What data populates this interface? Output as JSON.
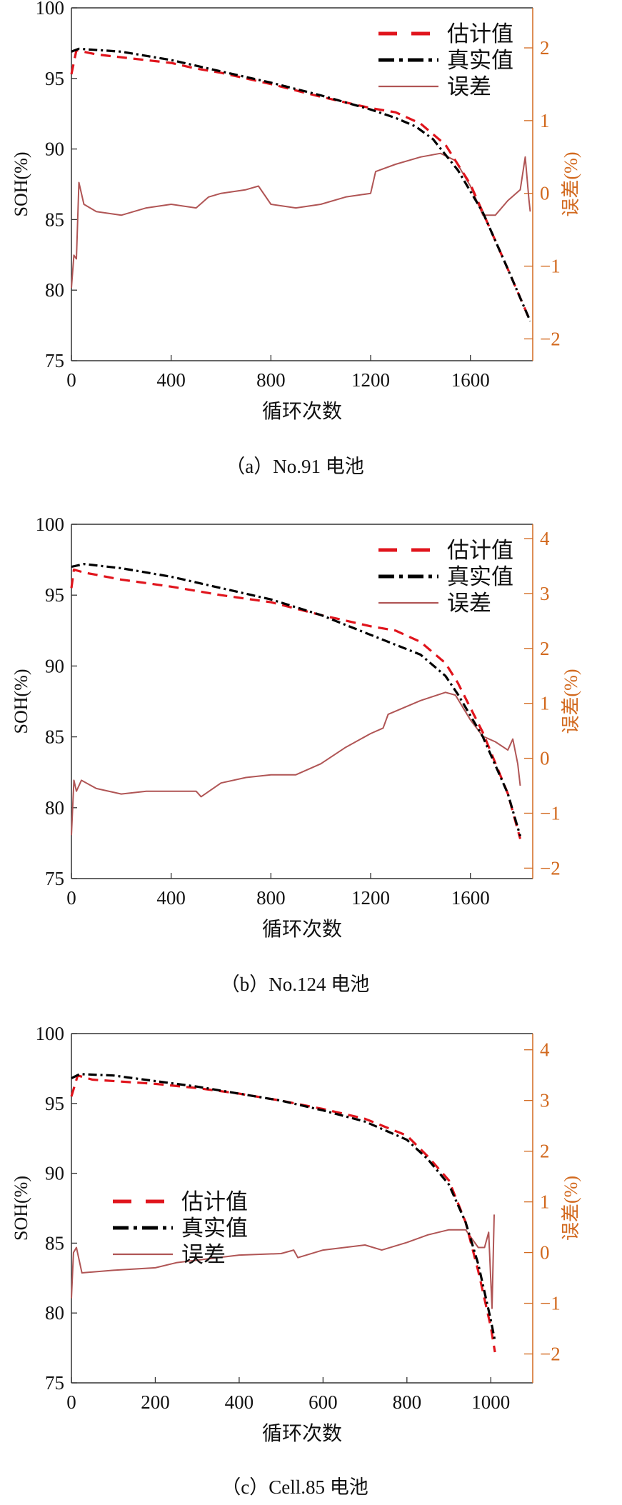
{
  "colors": {
    "estimate": "#e0141c",
    "true": "#000000",
    "error": "#b05555",
    "right_axis": "#d2691e",
    "axis": "#333333"
  },
  "chart_data": [
    {
      "type": "line",
      "caption": "（a）No.91 电池",
      "xlabel": "循环次数",
      "ylabel": "SOH(%)",
      "y2label": "误差(%)",
      "xlim": [
        0,
        1850
      ],
      "ylim": [
        75,
        100
      ],
      "y2lim": [
        -2.3,
        2.55
      ],
      "xticks": [
        0,
        400,
        800,
        1200,
        1600
      ],
      "yticks": [
        75,
        80,
        85,
        90,
        95,
        100
      ],
      "y2ticks": [
        -2,
        -1,
        0,
        1,
        2
      ],
      "grid": false,
      "legend_position": "top-right",
      "series": [
        {
          "name": "估计值",
          "axis": "left",
          "style": "dashed",
          "x": [
            0,
            20,
            100,
            200,
            400,
            500,
            600,
            800,
            1000,
            1200,
            1300,
            1400,
            1500,
            1600,
            1650,
            1750,
            1840
          ],
          "y": [
            95.3,
            97,
            96.7,
            96.5,
            96.1,
            95.7,
            95.4,
            94.6,
            93.7,
            92.9,
            92.6,
            91.8,
            90.3,
            87.5,
            85.5,
            81.5,
            77.8
          ]
        },
        {
          "name": "真实值",
          "axis": "left",
          "style": "dashdot",
          "x": [
            0,
            30,
            200,
            400,
            600,
            800,
            1000,
            1200,
            1300,
            1380,
            1450,
            1550,
            1650,
            1750,
            1840
          ],
          "y": [
            96.9,
            97.1,
            96.9,
            96.3,
            95.5,
            94.7,
            93.8,
            92.8,
            92.2,
            91.6,
            90.7,
            88.5,
            85.5,
            81.5,
            77.8
          ]
        },
        {
          "name": "误差",
          "axis": "right",
          "style": "solid",
          "x": [
            0,
            10,
            20,
            30,
            50,
            100,
            200,
            300,
            400,
            500,
            550,
            600,
            700,
            750,
            800,
            900,
            1000,
            1100,
            1200,
            1220,
            1300,
            1400,
            1480,
            1540,
            1600,
            1650,
            1700,
            1750,
            1800,
            1820,
            1835,
            1840
          ],
          "y": [
            -1.3,
            -0.85,
            -0.9,
            0.15,
            -0.15,
            -0.25,
            -0.3,
            -0.2,
            -0.15,
            -0.2,
            -0.05,
            0,
            0.05,
            0.1,
            -0.15,
            -0.2,
            -0.15,
            -0.05,
            0,
            0.3,
            0.4,
            0.5,
            0.55,
            0.45,
            0.1,
            -0.3,
            -0.3,
            -0.1,
            0.05,
            0.5,
            -0.1,
            -0.25
          ]
        }
      ]
    },
    {
      "type": "line",
      "caption": "（b）No.124 电池",
      "xlabel": "循环次数",
      "ylabel": "SOH(%)",
      "y2label": "误差(%)",
      "xlim": [
        0,
        1850
      ],
      "ylim": [
        75,
        100
      ],
      "y2lim": [
        -2.19,
        4.26
      ],
      "xticks": [
        0,
        400,
        800,
        1200,
        1600
      ],
      "yticks": [
        75,
        80,
        85,
        90,
        95,
        100
      ],
      "y2ticks": [
        -2,
        -1,
        0,
        1,
        2,
        3,
        4
      ],
      "grid": false,
      "legend_position": "top-right",
      "series": [
        {
          "name": "估计值",
          "axis": "left",
          "style": "dashed",
          "x": [
            0,
            10,
            50,
            200,
            400,
            600,
            800,
            1000,
            1200,
            1300,
            1400,
            1500,
            1550,
            1650,
            1750,
            1800
          ],
          "y": [
            95.5,
            96.8,
            96.6,
            96.1,
            95.6,
            95,
            94.5,
            93.6,
            92.8,
            92.5,
            91.7,
            90.2,
            88.8,
            85.3,
            81,
            77.8
          ]
        },
        {
          "name": "真实值",
          "axis": "left",
          "style": "dashdot",
          "x": [
            0,
            50,
            200,
            400,
            600,
            800,
            1000,
            1200,
            1400,
            1500,
            1550,
            1650,
            1750,
            1800
          ],
          "y": [
            97,
            97.2,
            96.9,
            96.3,
            95.5,
            94.7,
            93.6,
            92.2,
            90.8,
            89.3,
            88,
            85,
            81,
            78
          ]
        },
        {
          "name": "误差",
          "axis": "right",
          "style": "solid",
          "x": [
            0,
            10,
            20,
            40,
            100,
            200,
            300,
            400,
            500,
            520,
            600,
            700,
            800,
            900,
            1000,
            1100,
            1200,
            1250,
            1270,
            1400,
            1500,
            1540,
            1600,
            1650,
            1700,
            1750,
            1770,
            1790,
            1800
          ],
          "y": [
            -1.4,
            -0.4,
            -0.6,
            -0.4,
            -0.55,
            -0.65,
            -0.6,
            -0.6,
            -0.6,
            -0.7,
            -0.45,
            -0.35,
            -0.3,
            -0.3,
            -0.1,
            0.2,
            0.45,
            0.55,
            0.8,
            1.05,
            1.2,
            1.15,
            0.7,
            0.4,
            0.3,
            0.15,
            0.35,
            -0.1,
            -0.5
          ]
        }
      ]
    },
    {
      "type": "line",
      "caption": "（c）Cell.85 电池",
      "xlabel": "循环次数",
      "ylabel": "SOH(%)",
      "y2label": "误差(%)",
      "xlim": [
        0,
        1100
      ],
      "ylim": [
        75,
        100
      ],
      "y2lim": [
        -2.57,
        4.32
      ],
      "xticks": [
        0,
        200,
        400,
        600,
        800,
        1000
      ],
      "yticks": [
        75,
        80,
        85,
        90,
        95,
        100
      ],
      "y2ticks": [
        -2,
        -1,
        0,
        1,
        2,
        3,
        4
      ],
      "grid": false,
      "legend_position": "center-left",
      "series": [
        {
          "name": "估计值",
          "axis": "left",
          "style": "dashed",
          "x": [
            0,
            15,
            50,
            200,
            300,
            400,
            500,
            600,
            700,
            800,
            850,
            900,
            940,
            970,
            1000,
            1010
          ],
          "y": [
            95.5,
            97,
            96.7,
            96.4,
            96.1,
            95.7,
            95.2,
            94.6,
            93.9,
            92.7,
            91.2,
            89.5,
            86.5,
            83,
            79,
            77.2
          ]
        },
        {
          "name": "真实值",
          "axis": "left",
          "style": "dashdot",
          "x": [
            0,
            20,
            100,
            200,
            300,
            400,
            500,
            600,
            700,
            800,
            850,
            900,
            940,
            970,
            1000,
            1010
          ],
          "y": [
            96.8,
            97.1,
            97,
            96.6,
            96.2,
            95.7,
            95.2,
            94.5,
            93.7,
            92.4,
            91,
            89.2,
            86.5,
            83.5,
            79.5,
            78
          ]
        },
        {
          "name": "误差",
          "axis": "right",
          "style": "solid",
          "x": [
            0,
            5,
            12,
            25,
            100,
            200,
            250,
            400,
            500,
            530,
            540,
            600,
            700,
            740,
            800,
            850,
            900,
            940,
            970,
            985,
            995,
            1003,
            1008
          ],
          "y": [
            -0.9,
            0,
            0.1,
            -0.4,
            -0.35,
            -0.3,
            -0.2,
            -0.05,
            -0.02,
            0.05,
            -0.1,
            0.05,
            0.15,
            0.05,
            0.2,
            0.35,
            0.45,
            0.45,
            0.1,
            0.1,
            0.4,
            -1.1,
            0.75
          ]
        }
      ]
    }
  ]
}
